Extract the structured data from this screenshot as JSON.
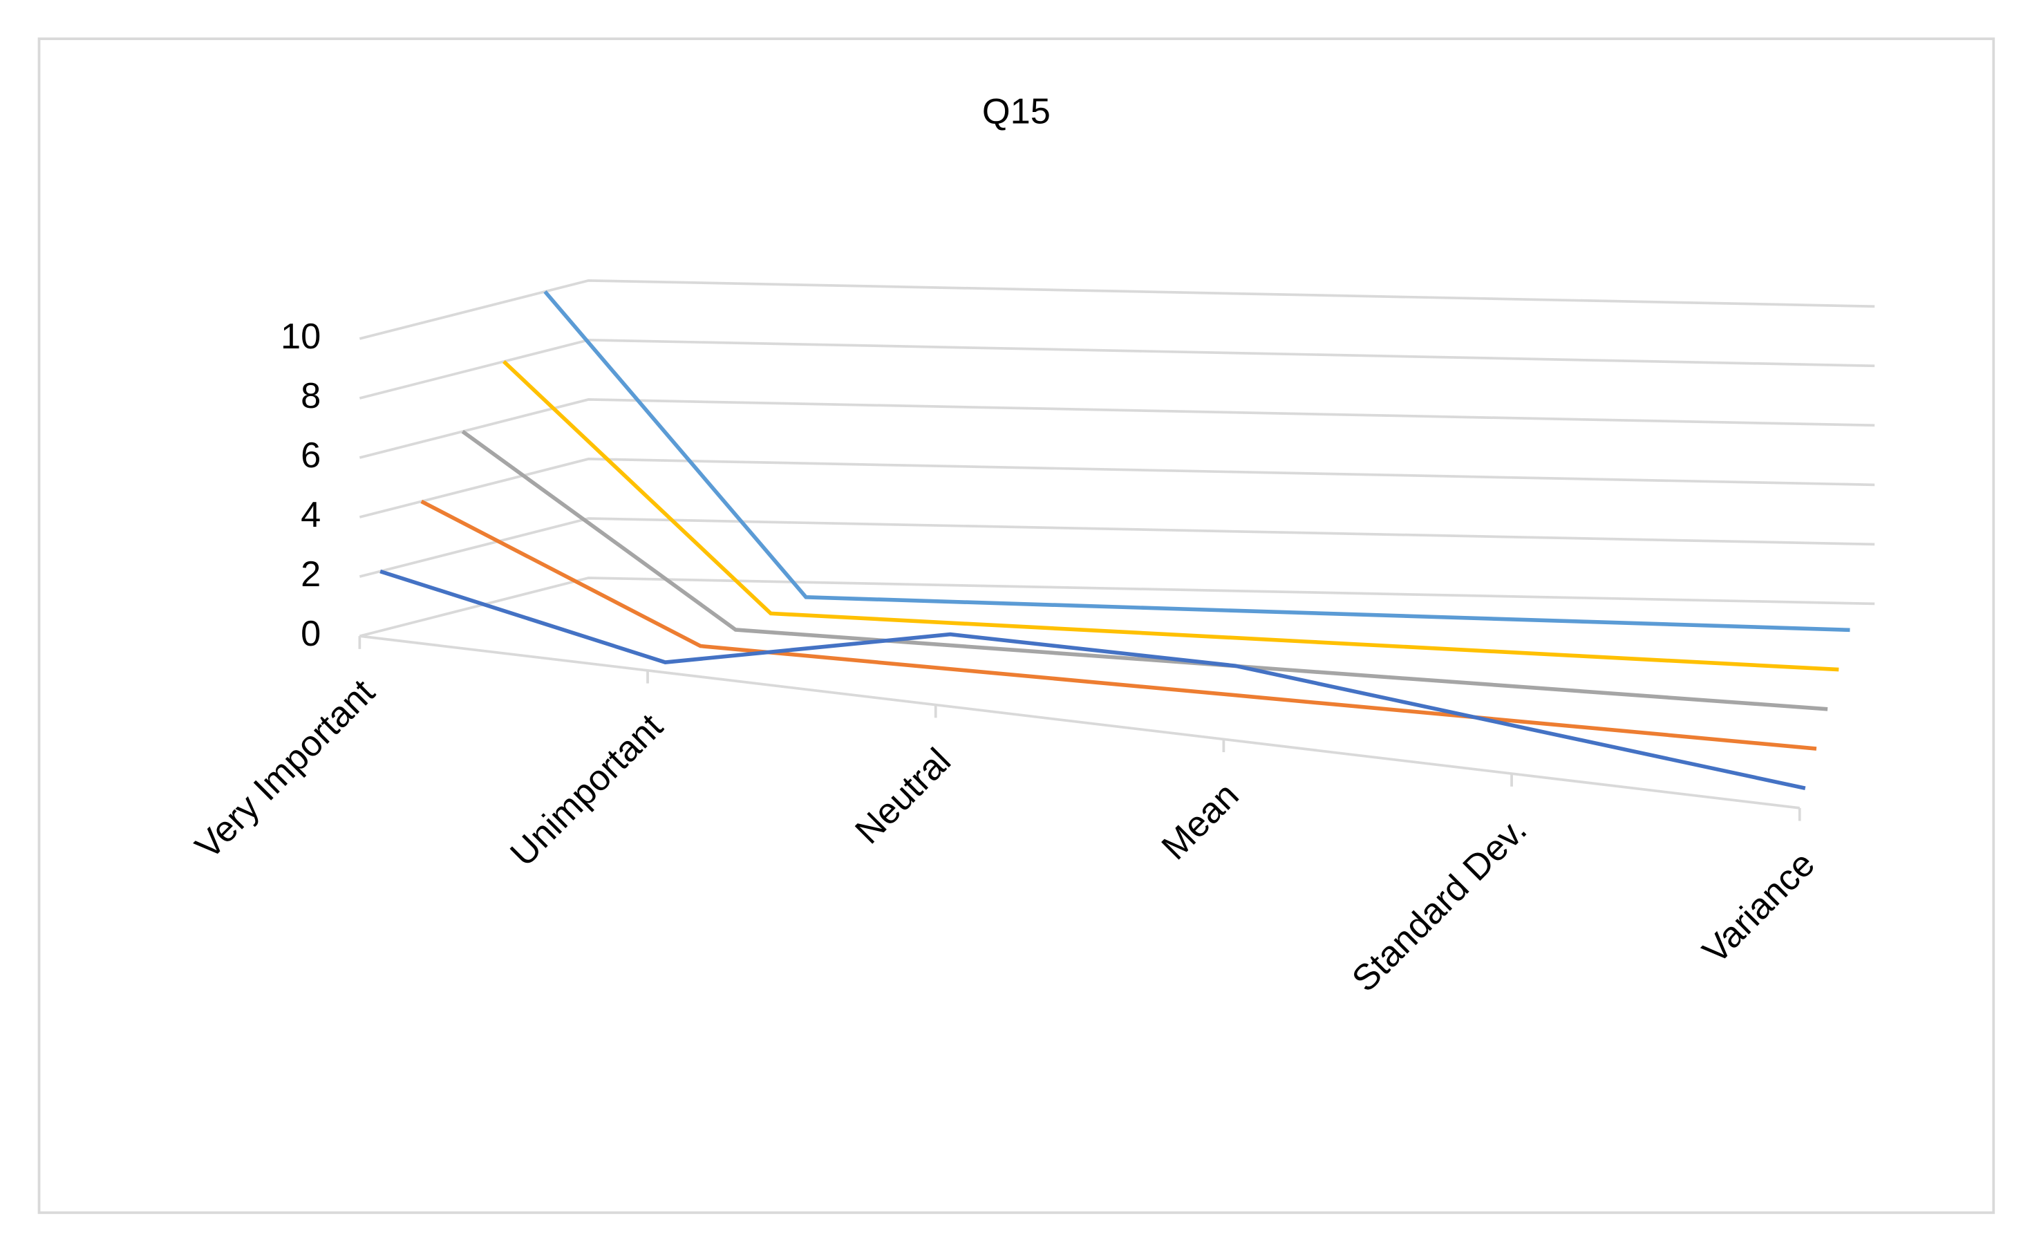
{
  "chart_data": {
    "type": "line",
    "title": "Q15",
    "categories": [
      "Very Important",
      "Unimportant",
      "Neutral",
      "Mean",
      "Standard Dev.",
      "Variance"
    ],
    "series": [
      {
        "color": "#5b9bd5",
        "values": [
          10,
          0,
          0,
          0,
          0,
          0
        ]
      },
      {
        "color": "#ffc000",
        "values": [
          8,
          0,
          0,
          0,
          0,
          0
        ]
      },
      {
        "color": "#a5a5a5",
        "values": [
          6,
          0,
          0,
          0,
          0,
          0
        ]
      },
      {
        "color": "#ed7d31",
        "values": [
          4,
          0,
          0,
          0,
          0,
          0
        ]
      },
      {
        "color": "#4472c4",
        "values": [
          2,
          0,
          2,
          2,
          1,
          0
        ]
      }
    ],
    "ylim": [
      0,
      10
    ],
    "yticks": [
      0,
      2,
      4,
      6,
      8,
      10
    ],
    "grid": true
  }
}
